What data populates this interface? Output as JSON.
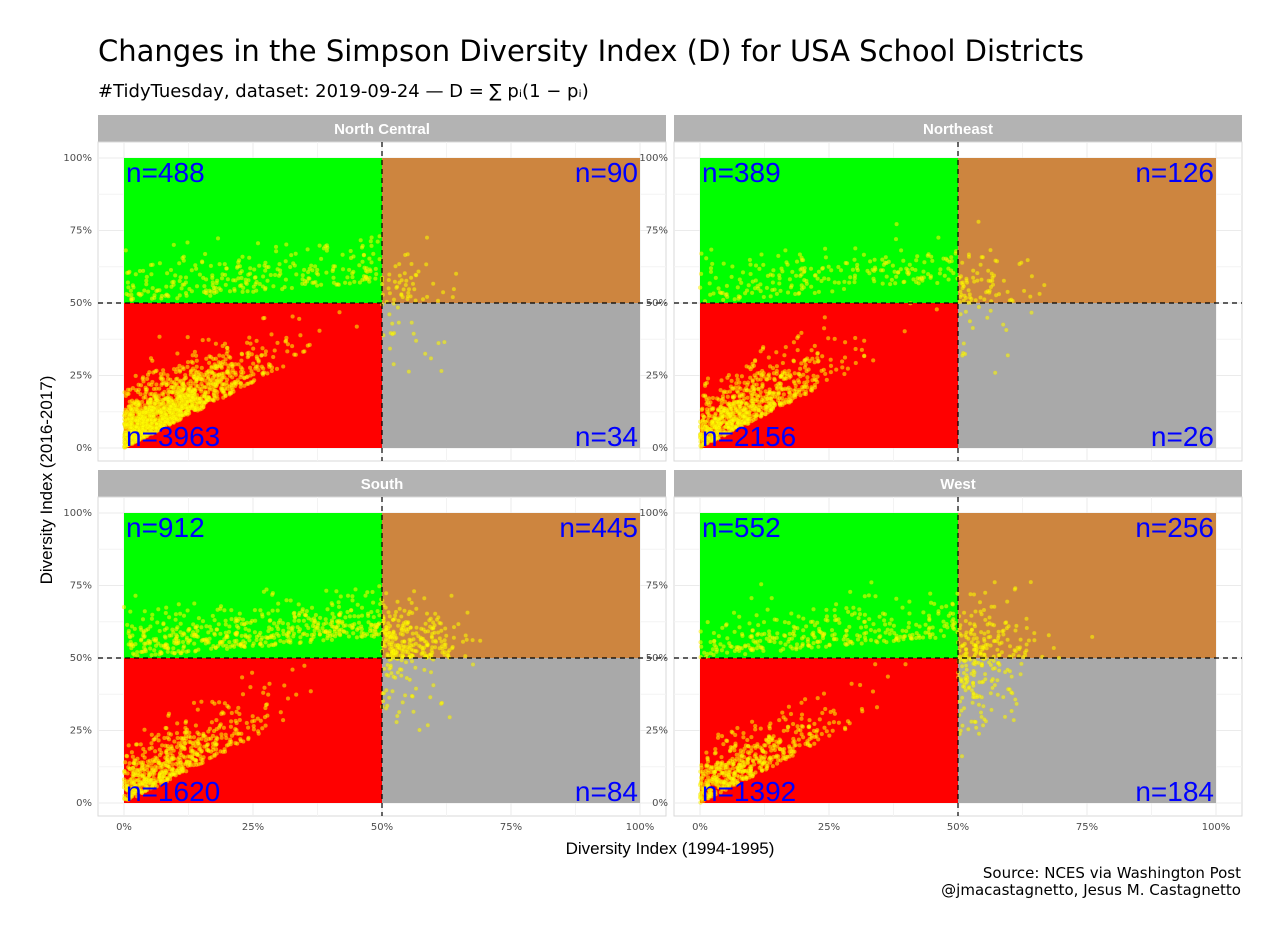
{
  "title": "Changes in the Simpson Diversity Index (D) for USA School Districts",
  "subtitle": {
    "text": "#TidyTuesday, dataset: 2019-09-24 — ",
    "formula": "D = ∑ pᵢ(1 − pᵢ)"
  },
  "caption": {
    "line1": "Source: NCES via Washington Post",
    "line2": "@jmacastagnetto, Jesus M. Castagnetto"
  },
  "colors": {
    "strip": "#b3b3b3",
    "top_left": "#00ff00",
    "top_right": "#cd853f",
    "bottom_left": "#ff0000",
    "bottom_right": "#a9a9a9",
    "points": "#ffff00",
    "count_text": "#0000ff"
  },
  "chart_data": {
    "type": "scatter",
    "xlabel": "Diversity Index (1994-1995)",
    "ylabel": "Diversity Index (2016-2017)",
    "xlim": [
      0,
      1
    ],
    "ylim": [
      0,
      1
    ],
    "x_ticks": [
      "0%",
      "25%",
      "50%",
      "75%",
      "100%"
    ],
    "y_ticks": [
      "0%",
      "25%",
      "50%",
      "75%",
      "100%"
    ],
    "threshold": 0.5,
    "panels": [
      {
        "name": "North Central",
        "counts": {
          "top_left": "n=488",
          "top_right": "n=90",
          "bottom_left": "n=3963",
          "bottom_right": "n=34"
        }
      },
      {
        "name": "Northeast",
        "counts": {
          "top_left": "n=389",
          "top_right": "n=126",
          "bottom_left": "n=2156",
          "bottom_right": "n=26"
        }
      },
      {
        "name": "South",
        "counts": {
          "top_left": "n=912",
          "top_right": "n=445",
          "bottom_left": "n=1620",
          "bottom_right": "n=84"
        }
      },
      {
        "name": "West",
        "counts": {
          "top_left": "n=552",
          "top_right": "n=256",
          "bottom_left": "n=1392",
          "bottom_right": "n=184"
        }
      }
    ]
  }
}
